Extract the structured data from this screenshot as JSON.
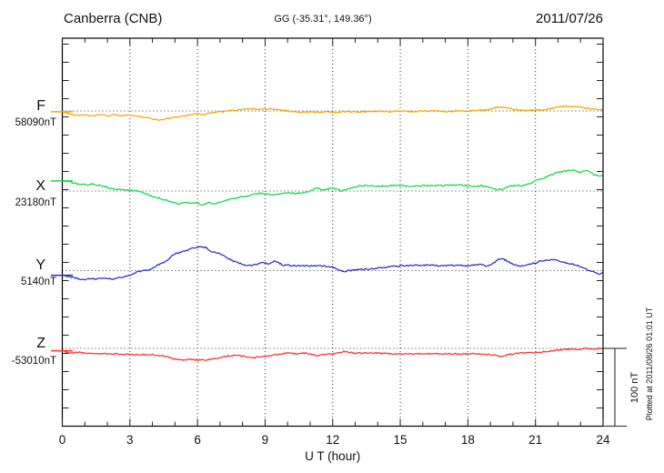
{
  "header": {
    "station": "Canberra (CNB)",
    "coordinates": "GG (-35.31°, 149.36°)",
    "date": "2011/07/26"
  },
  "x_axis": {
    "label": "U T (hour)",
    "tick_labels": [
      "0",
      "3",
      "6",
      "9",
      "12",
      "15",
      "18",
      "21",
      "24"
    ],
    "range_hours": [
      0,
      24
    ]
  },
  "scale_bar": {
    "label": "100 nT",
    "value_nT": 100
  },
  "footer_note": "Plotted at 2011/08/26 01:01 UT",
  "colors": {
    "F": "#f5a800",
    "X": "#12d94a",
    "Y": "#2a2ecc",
    "Z": "#ff3030",
    "frame": "#000000",
    "grid": "#333333"
  },
  "chart_data": {
    "type": "line",
    "title": "Canberra (CNB) magnetogram 2011/07/26",
    "xlabel": "U T (hour)",
    "x_range": [
      0,
      24
    ],
    "grid": "dotted vertical lines every 3 hours; dotted horizontal baseline per component",
    "legend_position": "left margin, one label per trace",
    "y_scale_note": "100 nT scale bar at lower right; points are offsets in nT from each component baseline",
    "series": [
      {
        "name": "F",
        "reference_label": "58090nT",
        "color": "#f5a800",
        "points": [
          [
            0,
            -1
          ],
          [
            0.5,
            -5
          ],
          [
            1,
            -5
          ],
          [
            1.3,
            -6
          ],
          [
            1.7,
            -5
          ],
          [
            2,
            -6
          ],
          [
            2.3,
            -5
          ],
          [
            2.7,
            -6
          ],
          [
            3,
            -5
          ],
          [
            3.3,
            -6
          ],
          [
            3.6,
            -8
          ],
          [
            4,
            -10
          ],
          [
            4.3,
            -12
          ],
          [
            4.6,
            -10
          ],
          [
            5,
            -8
          ],
          [
            5.3,
            -7
          ],
          [
            5.7,
            -5
          ],
          [
            6,
            -3
          ],
          [
            6.3,
            -5
          ],
          [
            6.6,
            -2
          ],
          [
            7,
            -1
          ],
          [
            7.3,
            0
          ],
          [
            7.7,
            1
          ],
          [
            8,
            2
          ],
          [
            8.3,
            3
          ],
          [
            8.7,
            2
          ],
          [
            9,
            2
          ],
          [
            9.3,
            3
          ],
          [
            9.7,
            1
          ],
          [
            10,
            0
          ],
          [
            10.3,
            -1
          ],
          [
            10.7,
            -2
          ],
          [
            11,
            -1
          ],
          [
            11.3,
            -2
          ],
          [
            11.7,
            -1
          ],
          [
            12,
            -2
          ],
          [
            12.5,
            -1
          ],
          [
            13,
            -1
          ],
          [
            13.5,
            -1
          ],
          [
            14,
            0
          ],
          [
            14.5,
            -1
          ],
          [
            15,
            0
          ],
          [
            15.5,
            -1
          ],
          [
            16,
            0
          ],
          [
            16.5,
            0
          ],
          [
            17,
            -1
          ],
          [
            17.5,
            0
          ],
          [
            18,
            0
          ],
          [
            18.5,
            1
          ],
          [
            19,
            2
          ],
          [
            19.3,
            5
          ],
          [
            19.6,
            5
          ],
          [
            20,
            2
          ],
          [
            20.5,
            1
          ],
          [
            21,
            1
          ],
          [
            21.5,
            2
          ],
          [
            22,
            5
          ],
          [
            22.3,
            6
          ],
          [
            22.7,
            6
          ],
          [
            23,
            5
          ],
          [
            23.3,
            3
          ],
          [
            23.7,
            2
          ],
          [
            24,
            1
          ]
        ]
      },
      {
        "name": "X",
        "reference_label": "23180nT",
        "color": "#12d94a",
        "points": [
          [
            0,
            13
          ],
          [
            0.3,
            12
          ],
          [
            0.7,
            9
          ],
          [
            1,
            8
          ],
          [
            1.3,
            9
          ],
          [
            1.7,
            7
          ],
          [
            2,
            5
          ],
          [
            2.3,
            2
          ],
          [
            2.7,
            2
          ],
          [
            3,
            1
          ],
          [
            3.3,
            0
          ],
          [
            3.7,
            -3
          ],
          [
            4,
            -7
          ],
          [
            4.3,
            -9
          ],
          [
            4.7,
            -13
          ],
          [
            5,
            -15
          ],
          [
            5.2,
            -17
          ],
          [
            5.4,
            -14
          ],
          [
            5.7,
            -16
          ],
          [
            6,
            -15
          ],
          [
            6.2,
            -18
          ],
          [
            6.5,
            -15
          ],
          [
            6.8,
            -17
          ],
          [
            7,
            -14
          ],
          [
            7.3,
            -12
          ],
          [
            7.7,
            -9
          ],
          [
            8,
            -7
          ],
          [
            8.3,
            -6
          ],
          [
            8.7,
            -3
          ],
          [
            9,
            -3
          ],
          [
            9.3,
            -5
          ],
          [
            9.7,
            -4
          ],
          [
            10,
            -2
          ],
          [
            10.3,
            -3
          ],
          [
            10.7,
            -2
          ],
          [
            11,
            0
          ],
          [
            11.3,
            4
          ],
          [
            11.6,
            1
          ],
          [
            12,
            4
          ],
          [
            12.4,
            0
          ],
          [
            12.6,
            2
          ],
          [
            13,
            6
          ],
          [
            13.5,
            7
          ],
          [
            14,
            6
          ],
          [
            14.5,
            7
          ],
          [
            15,
            7
          ],
          [
            15.5,
            6
          ],
          [
            16,
            7
          ],
          [
            16.5,
            7
          ],
          [
            17,
            7
          ],
          [
            17.5,
            8
          ],
          [
            18,
            7
          ],
          [
            18.3,
            6
          ],
          [
            18.6,
            7
          ],
          [
            19,
            4
          ],
          [
            19.3,
            2
          ],
          [
            19.5,
            2
          ],
          [
            19.8,
            6
          ],
          [
            20,
            7
          ],
          [
            20.4,
            7
          ],
          [
            20.8,
            10
          ],
          [
            21,
            13
          ],
          [
            21.3,
            16
          ],
          [
            21.7,
            21
          ],
          [
            22,
            24
          ],
          [
            22.3,
            26
          ],
          [
            22.6,
            27
          ],
          [
            23,
            24
          ],
          [
            23.3,
            27
          ],
          [
            23.6,
            21
          ],
          [
            24,
            19
          ]
        ]
      },
      {
        "name": "Y",
        "reference_label": "5140nT",
        "color": "#2a2ecc",
        "points": [
          [
            0,
            -6
          ],
          [
            0.5,
            -9
          ],
          [
            1,
            -12
          ],
          [
            1.2,
            -10
          ],
          [
            1.5,
            -11
          ],
          [
            1.8,
            -9
          ],
          [
            2,
            -10
          ],
          [
            2.3,
            -11
          ],
          [
            2.6,
            -9
          ],
          [
            3,
            -6
          ],
          [
            3.3,
            -2
          ],
          [
            3.6,
            0
          ],
          [
            3.8,
            1
          ],
          [
            4,
            3
          ],
          [
            4.3,
            8
          ],
          [
            4.6,
            12
          ],
          [
            5,
            22
          ],
          [
            5.3,
            24
          ],
          [
            5.7,
            28
          ],
          [
            6,
            30
          ],
          [
            6.2,
            31
          ],
          [
            6.4,
            29
          ],
          [
            6.6,
            25
          ],
          [
            7,
            22
          ],
          [
            7.3,
            17
          ],
          [
            7.6,
            12
          ],
          [
            8,
            8
          ],
          [
            8.2,
            6
          ],
          [
            8.5,
            7
          ],
          [
            8.8,
            10
          ],
          [
            9,
            10
          ],
          [
            9.2,
            9
          ],
          [
            9.4,
            12
          ],
          [
            9.6,
            10
          ],
          [
            9.8,
            7
          ],
          [
            10,
            7
          ],
          [
            10.5,
            6
          ],
          [
            11,
            6
          ],
          [
            11.5,
            6
          ],
          [
            12,
            5
          ],
          [
            12.3,
            0
          ],
          [
            12.5,
            -1
          ],
          [
            13,
            1
          ],
          [
            13.5,
            2
          ],
          [
            14,
            3
          ],
          [
            14.5,
            5
          ],
          [
            15,
            6
          ],
          [
            15.5,
            7
          ],
          [
            16,
            7
          ],
          [
            16.5,
            7
          ],
          [
            17,
            6
          ],
          [
            17.5,
            7
          ],
          [
            18,
            6
          ],
          [
            18.5,
            8
          ],
          [
            18.8,
            6
          ],
          [
            19.1,
            9
          ],
          [
            19.4,
            15
          ],
          [
            19.5,
            16
          ],
          [
            19.7,
            13
          ],
          [
            20,
            8
          ],
          [
            20.3,
            6
          ],
          [
            20.7,
            8
          ],
          [
            21,
            10
          ],
          [
            21.3,
            13
          ],
          [
            21.7,
            14
          ],
          [
            22,
            13
          ],
          [
            22.3,
            10
          ],
          [
            22.7,
            8
          ],
          [
            23,
            5
          ],
          [
            23.3,
            1
          ],
          [
            23.6,
            -2
          ],
          [
            23.8,
            -5
          ],
          [
            24,
            -3
          ]
        ]
      },
      {
        "name": "Z",
        "reference_label": "-53010nT",
        "color": "#ff3030",
        "points": [
          [
            0,
            -3
          ],
          [
            0.3,
            -6
          ],
          [
            0.7,
            -5
          ],
          [
            1,
            -6
          ],
          [
            1.5,
            -7
          ],
          [
            2,
            -7
          ],
          [
            2.5,
            -7
          ],
          [
            3,
            -8
          ],
          [
            3.5,
            -8
          ],
          [
            4,
            -8
          ],
          [
            4.3,
            -9
          ],
          [
            4.6,
            -10
          ],
          [
            5,
            -14
          ],
          [
            5.3,
            -15
          ],
          [
            5.7,
            -14
          ],
          [
            6,
            -15
          ],
          [
            6.3,
            -15
          ],
          [
            6.7,
            -14
          ],
          [
            7,
            -12
          ],
          [
            7.3,
            -10
          ],
          [
            7.7,
            -9
          ],
          [
            8,
            -10
          ],
          [
            8.5,
            -12
          ],
          [
            9,
            -10
          ],
          [
            9.3,
            -9
          ],
          [
            9.7,
            -7
          ],
          [
            10,
            -6
          ],
          [
            10.3,
            -7
          ],
          [
            10.7,
            -6
          ],
          [
            11,
            -7
          ],
          [
            11.3,
            -9
          ],
          [
            11.7,
            -8
          ],
          [
            12,
            -7
          ],
          [
            12.5,
            -4
          ],
          [
            12.7,
            -5
          ],
          [
            13,
            -6
          ],
          [
            13.5,
            -6
          ],
          [
            14,
            -6
          ],
          [
            14.5,
            -7
          ],
          [
            15,
            -7
          ],
          [
            16,
            -7
          ],
          [
            16.5,
            -7
          ],
          [
            17,
            -7
          ],
          [
            17.5,
            -7
          ],
          [
            18,
            -7
          ],
          [
            18.5,
            -7
          ],
          [
            19,
            -8
          ],
          [
            19.3,
            -9
          ],
          [
            19.5,
            -11
          ],
          [
            19.8,
            -8
          ],
          [
            20,
            -7
          ],
          [
            20.5,
            -6
          ],
          [
            21,
            -5
          ],
          [
            21.5,
            -4
          ],
          [
            22,
            -2
          ],
          [
            22.5,
            -1
          ],
          [
            23,
            -1
          ],
          [
            23.3,
            0
          ],
          [
            23.6,
            -1
          ],
          [
            23.8,
            0
          ],
          [
            24,
            0
          ]
        ]
      }
    ]
  }
}
